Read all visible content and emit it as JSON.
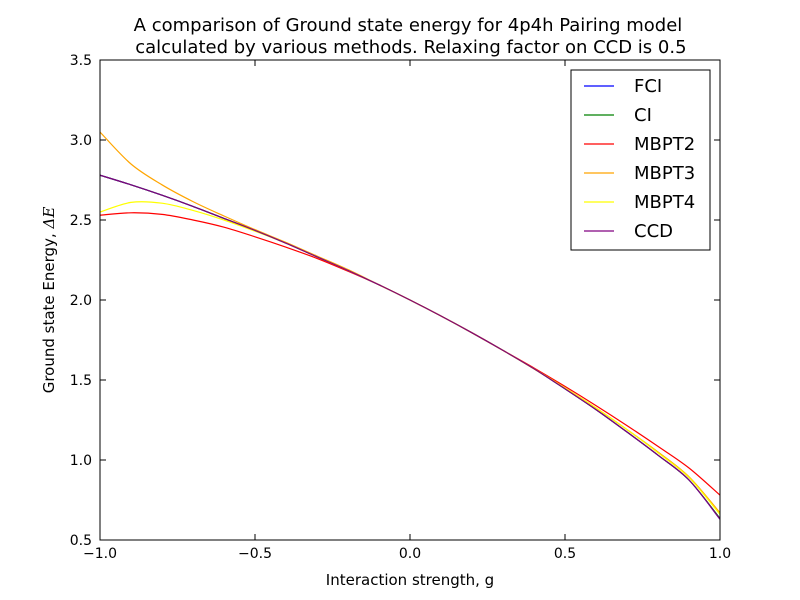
{
  "chart_data": {
    "type": "line",
    "title_lines": [
      "A comparison of Ground state energy for 4p4h Pairing model",
      " calculated by various methods. Relaxing factor on CCD is 0.5"
    ],
    "xlabel": "Interaction strength, g",
    "ylabel_text": "Ground state Energy, ",
    "ylabel_symbol": "ΔE",
    "xlim": [
      -1.0,
      1.0
    ],
    "ylim": [
      0.5,
      3.5
    ],
    "xticks": [
      -1.0,
      -0.5,
      0.0,
      0.5,
      1.0
    ],
    "xtick_labels": [
      "−1.0",
      "−0.5",
      "0.0",
      "0.5",
      "1.0"
    ],
    "yticks": [
      0.5,
      1.0,
      1.5,
      2.0,
      2.5,
      3.0,
      3.5
    ],
    "ytick_labels": [
      "0.5",
      "1.0",
      "1.5",
      "2.0",
      "2.5",
      "3.0",
      "3.5"
    ],
    "grid": false,
    "legend_position": "top-right",
    "x": [
      -1.0,
      -0.9,
      -0.8,
      -0.7,
      -0.6,
      -0.5,
      -0.4,
      -0.3,
      -0.2,
      -0.1,
      0.0,
      0.1,
      0.2,
      0.3,
      0.4,
      0.5,
      0.6,
      0.7,
      0.8,
      0.9,
      1.0
    ],
    "series": [
      {
        "name": "FCI",
        "color": "#0000ff",
        "values": [
          2.78,
          2.72,
          2.655,
          2.585,
          2.51,
          2.435,
          2.355,
          2.27,
          2.185,
          2.095,
          2.0,
          1.9,
          1.795,
          1.685,
          1.57,
          1.445,
          1.315,
          1.175,
          1.03,
          0.875,
          0.63
        ]
      },
      {
        "name": "CI",
        "color": "#008000",
        "values": [
          2.78,
          2.72,
          2.655,
          2.585,
          2.51,
          2.435,
          2.355,
          2.27,
          2.185,
          2.095,
          2.0,
          1.9,
          1.795,
          1.685,
          1.57,
          1.445,
          1.315,
          1.175,
          1.03,
          0.875,
          0.635
        ]
      },
      {
        "name": "MBPT2",
        "color": "#ff0000",
        "values": [
          2.53,
          2.545,
          2.535,
          2.5,
          2.455,
          2.395,
          2.33,
          2.26,
          2.18,
          2.095,
          2.0,
          1.9,
          1.795,
          1.685,
          1.575,
          1.46,
          1.34,
          1.215,
          1.085,
          0.95,
          0.78
        ]
      },
      {
        "name": "MBPT3",
        "color": "#ffa500",
        "values": [
          3.05,
          2.85,
          2.72,
          2.615,
          2.525,
          2.44,
          2.36,
          2.275,
          2.19,
          2.095,
          2.0,
          1.9,
          1.795,
          1.685,
          1.57,
          1.45,
          1.325,
          1.19,
          1.05,
          0.895,
          0.67
        ]
      },
      {
        "name": "MBPT4",
        "color": "#ffff00",
        "values": [
          2.55,
          2.61,
          2.605,
          2.56,
          2.5,
          2.43,
          2.355,
          2.27,
          2.185,
          2.095,
          2.0,
          1.9,
          1.795,
          1.685,
          1.57,
          1.45,
          1.325,
          1.19,
          1.045,
          0.89,
          0.66
        ]
      },
      {
        "name": "CCD",
        "color": "#800080",
        "values": [
          2.78,
          2.72,
          2.655,
          2.585,
          2.51,
          2.435,
          2.355,
          2.27,
          2.185,
          2.095,
          2.0,
          1.9,
          1.795,
          1.685,
          1.57,
          1.445,
          1.315,
          1.175,
          1.03,
          0.875,
          0.63
        ]
      }
    ]
  }
}
